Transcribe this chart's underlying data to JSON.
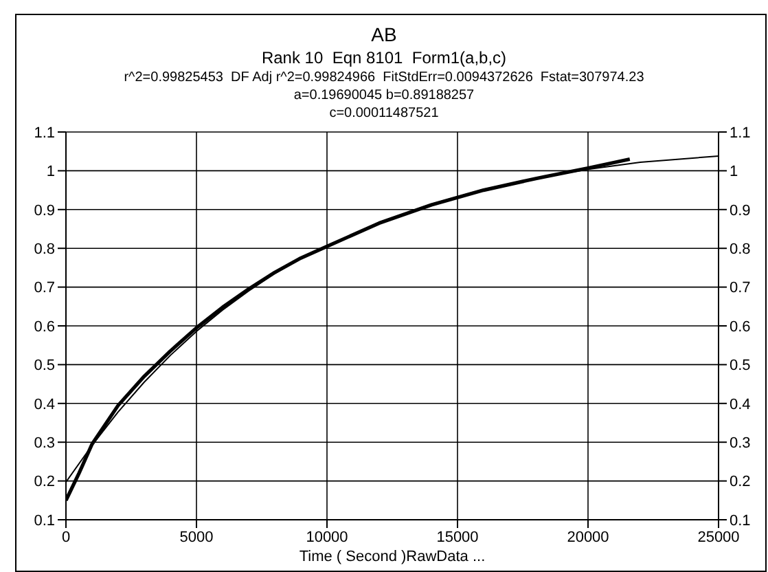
{
  "chart_data": {
    "type": "line",
    "title": "AB",
    "subtitle": "Rank 10  Eqn 8101  Form1(a,b,c)",
    "annotations": [
      "r^2=0.99825453  DF Adj r^2=0.99824966  FitStdErr=0.0094372626  Fstat=307974.23",
      "a=0.19690045 b=0.89188257",
      "c=0.00011487521"
    ],
    "xlabel": "Time ( Second )RawData ...",
    "series": [
      {
        "color": "#000000",
        "x": [
          0,
          500,
          1000,
          2000,
          3000,
          4000,
          5000,
          6000,
          7000,
          8000,
          9000,
          10000,
          12000,
          14000,
          16000,
          18000,
          20000,
          21600
        ],
        "values": [
          0.15,
          0.22,
          0.295,
          0.395,
          0.47,
          0.535,
          0.595,
          0.648,
          0.695,
          0.738,
          0.775,
          0.805,
          0.865,
          0.912,
          0.95,
          0.98,
          1.007,
          1.03
        ]
      },
      {
        "color": "#000000",
        "x": [
          0,
          1000,
          2000,
          3000,
          4000,
          5000,
          6000,
          7000,
          8000,
          9000,
          10000,
          12000,
          14000,
          16000,
          18000,
          20000,
          22000,
          25000
        ],
        "values": [
          0.197,
          0.292,
          0.378,
          0.455,
          0.524,
          0.586,
          0.641,
          0.69,
          0.735,
          0.775,
          0.806,
          0.867,
          0.914,
          0.952,
          0.981,
          1.004,
          1.022,
          1.038
        ]
      }
    ],
    "xlim": [
      0,
      25000
    ],
    "xticks": [
      0,
      5000,
      10000,
      15000,
      20000,
      25000
    ],
    "ylim": [
      0.1,
      1.1
    ],
    "yticks": [
      0.1,
      0.2,
      0.3,
      0.4,
      0.5,
      0.6,
      0.7,
      0.8,
      0.9,
      1,
      1.1
    ],
    "y2lim": [
      0.1,
      1.1
    ],
    "y2ticks": [
      0.1,
      0.2,
      0.3,
      0.4,
      0.5,
      0.6,
      0.7,
      0.8,
      0.9,
      1,
      1.1
    ],
    "grid": true,
    "marker": "none",
    "line_style": "solid"
  }
}
